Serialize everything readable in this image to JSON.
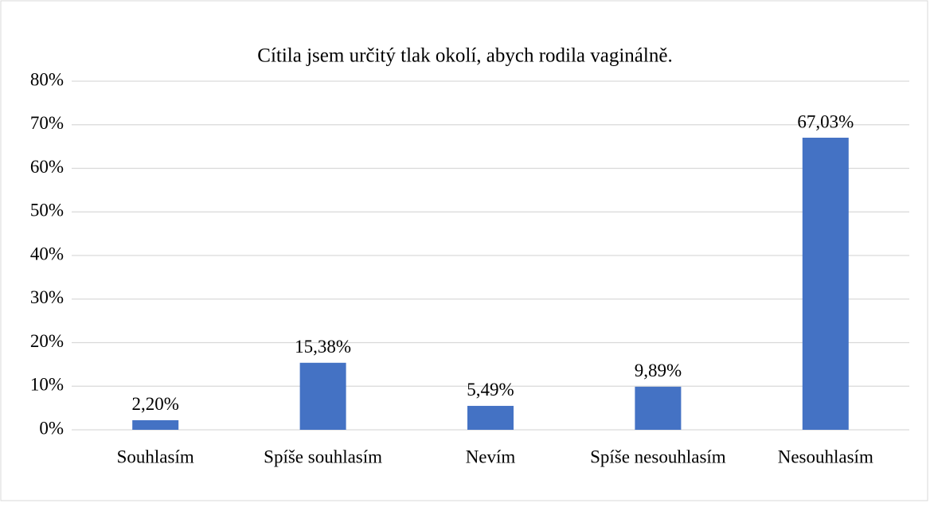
{
  "chart_data": {
    "type": "bar",
    "title": "Cítila jsem určitý tlak okolí, abych rodila vaginálně.",
    "categories": [
      "Souhlasím",
      "Spíše souhlasím",
      "Nevím",
      "Spíše nesouhlasím",
      "Nesouhlasím"
    ],
    "values": [
      2.2,
      15.38,
      5.49,
      9.89,
      67.03
    ],
    "value_labels": [
      "2,20%",
      "15,38%",
      "5,49%",
      "9,89%",
      "67,03%"
    ],
    "color": "#4472c4",
    "ylim": [
      0,
      80
    ],
    "yticks": [
      {
        "value": 0,
        "label": "0%"
      },
      {
        "value": 10,
        "label": "10%"
      },
      {
        "value": 20,
        "label": "20%"
      },
      {
        "value": 30,
        "label": "30%"
      },
      {
        "value": 40,
        "label": "40%"
      },
      {
        "value": 50,
        "label": "50%"
      },
      {
        "value": 60,
        "label": "60%"
      },
      {
        "value": 70,
        "label": "70%"
      },
      {
        "value": 80,
        "label": "80%"
      }
    ],
    "grid": true
  }
}
